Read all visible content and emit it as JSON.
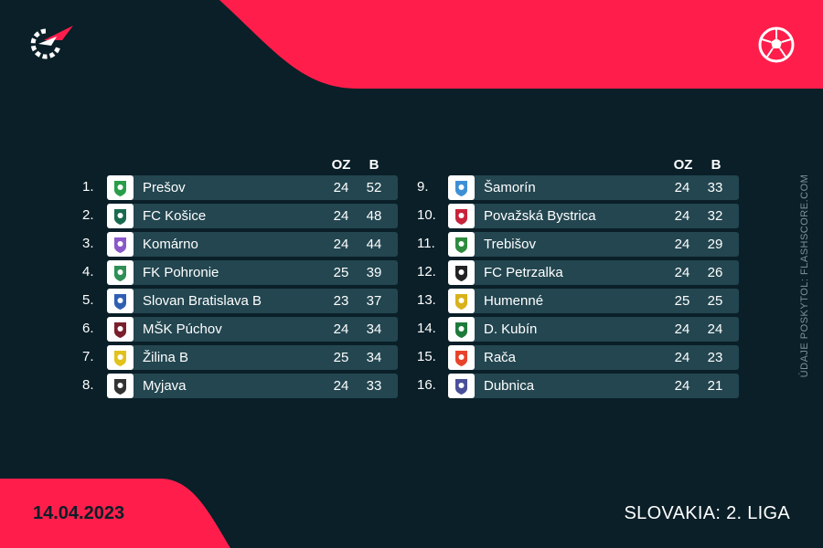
{
  "colors": {
    "background": "#0a1f28",
    "accent": "#ff1e4b",
    "row": "#234650"
  },
  "header": {
    "logo_icon": "flashscore-logo-icon",
    "sport_icon": "soccer-ball-icon"
  },
  "table": {
    "columns": {
      "played": "OZ",
      "points": "B"
    },
    "left": [
      {
        "rank": "1.",
        "team": "Prešov",
        "played": "24",
        "points": "52",
        "crest_color": "#2a9d4a"
      },
      {
        "rank": "2.",
        "team": "FC Košice",
        "played": "24",
        "points": "48",
        "crest_color": "#1a6b4f"
      },
      {
        "rank": "3.",
        "team": "Komárno",
        "played": "24",
        "points": "44",
        "crest_color": "#8a58c9"
      },
      {
        "rank": "4.",
        "team": "FK Pohronie",
        "played": "25",
        "points": "39",
        "crest_color": "#2f8f57"
      },
      {
        "rank": "5.",
        "team": "Slovan Bratislava B",
        "played": "23",
        "points": "37",
        "crest_color": "#2f5fb3"
      },
      {
        "rank": "6.",
        "team": "MŠK Púchov",
        "played": "24",
        "points": "34",
        "crest_color": "#7a1f2b"
      },
      {
        "rank": "7.",
        "team": "Žilina B",
        "played": "25",
        "points": "34",
        "crest_color": "#e1c21d"
      },
      {
        "rank": "8.",
        "team": "Myjava",
        "played": "24",
        "points": "33",
        "crest_color": "#333333"
      }
    ],
    "right": [
      {
        "rank": "9.",
        "team": "Šamorín",
        "played": "24",
        "points": "33",
        "crest_color": "#3d8fd6"
      },
      {
        "rank": "10.",
        "team": "Považská Bystrica",
        "played": "24",
        "points": "32",
        "crest_color": "#c8233a"
      },
      {
        "rank": "11.",
        "team": "Trebišov",
        "played": "24",
        "points": "29",
        "crest_color": "#2e8b3e"
      },
      {
        "rank": "12.",
        "team": "FC Petrzalka",
        "played": "24",
        "points": "26",
        "crest_color": "#222222"
      },
      {
        "rank": "13.",
        "team": "Humenné",
        "played": "25",
        "points": "25",
        "crest_color": "#d9b21c"
      },
      {
        "rank": "14.",
        "team": "D. Kubín",
        "played": "24",
        "points": "24",
        "crest_color": "#1f7a3a"
      },
      {
        "rank": "15.",
        "team": "Rača",
        "played": "24",
        "points": "23",
        "crest_color": "#e8432a"
      },
      {
        "rank": "16.",
        "team": "Dubnica",
        "played": "24",
        "points": "21",
        "crest_color": "#4a4f9a"
      }
    ]
  },
  "footer": {
    "date": "14.04.2023",
    "league": "SLOVAKIA: 2. LIGA"
  },
  "source_note": "ÚDAJE POSKYTOL: FLASHSCORE.COM"
}
